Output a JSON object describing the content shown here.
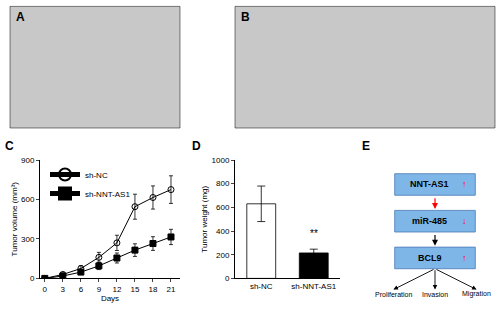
{
  "chart_data": [
    {
      "type": "placeholder",
      "title": "A",
      "color": "#c8c8c8"
    },
    {
      "type": "placeholder",
      "title": "B",
      "color": "#c8c8c8"
    },
    {
      "type": "line",
      "title": "C",
      "x": [
        0,
        3,
        6,
        9,
        12,
        15,
        18,
        21
      ],
      "series": [
        {
          "name": "sh-NC",
          "color": "black",
          "marker": "circle-open",
          "values": [
            0,
            30,
            75,
            160,
            270,
            545,
            615,
            675
          ],
          "errors": [
            0,
            12,
            22,
            38,
            58,
            95,
            88,
            105
          ]
        },
        {
          "name": "sh-NNT-AS1",
          "color": "black",
          "marker": "square",
          "values": [
            0,
            18,
            48,
            95,
            155,
            215,
            265,
            315
          ],
          "errors": [
            0,
            8,
            18,
            28,
            38,
            48,
            52,
            58
          ]
        }
      ],
      "xlabel": "Days",
      "ylabel": "Tumor volume (mm³)",
      "xlim": [
        -0.8,
        22.5
      ],
      "xticks": [
        0,
        3,
        6,
        9,
        12,
        15,
        18,
        21
      ],
      "ylim": [
        0,
        900
      ],
      "yticks": [
        0,
        300,
        600,
        900
      ],
      "legend": "upper left",
      "grid": false
    },
    {
      "type": "bar",
      "title": "D",
      "categories": [
        "sh-NC",
        "sh-NNT-AS1"
      ],
      "values": [
        630,
        215
      ],
      "errors": [
        150,
        32
      ],
      "colors": [
        "white",
        "black"
      ],
      "ylabel": "Tumor weight (mg)",
      "ylim": [
        0,
        1000
      ],
      "yticks": [
        0,
        200,
        400,
        600,
        800,
        1000
      ],
      "annotations": [
        {
          "text": "**",
          "x": "sh-NNT-AS1"
        }
      ],
      "grid": false
    },
    {
      "type": "diagram",
      "title": "E",
      "categories": [
        "NNT-AS1",
        "miR-485",
        "BCL9"
      ],
      "value_labels": [
        "↑",
        "↓",
        "↑"
      ],
      "annotations": [
        "Proliferation",
        "Invasion",
        "Migration"
      ],
      "color": "#7EB6E8"
    }
  ]
}
